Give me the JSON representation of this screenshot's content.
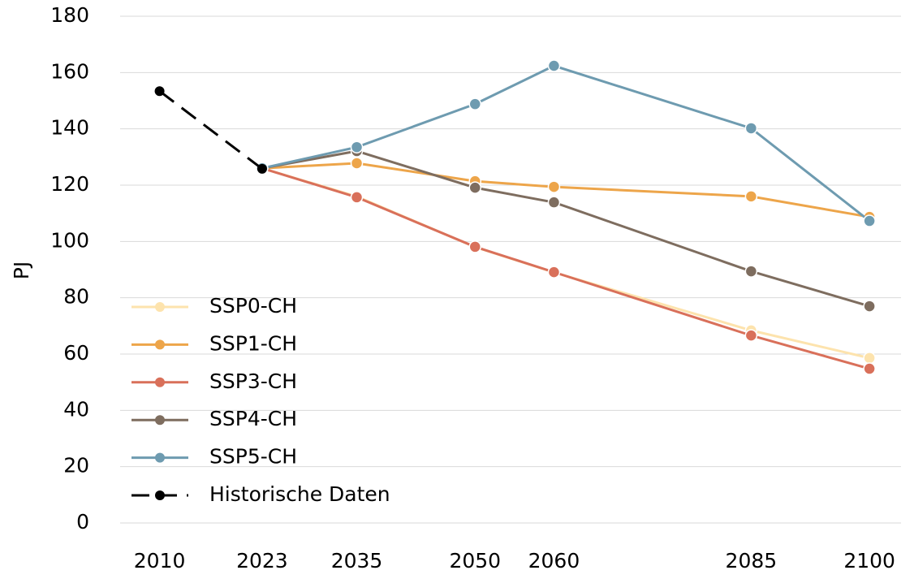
{
  "chart_data": {
    "type": "line",
    "y_label": "PJ",
    "x": [
      2010,
      2023,
      2035,
      2050,
      2060,
      2085,
      2100
    ],
    "xlim": [
      2005,
      2104
    ],
    "xticks": [
      2010,
      2023,
      2035,
      2050,
      2060,
      2085,
      2100
    ],
    "ylim": [
      0,
      180
    ],
    "yticks": [
      0,
      20,
      40,
      60,
      80,
      100,
      120,
      140,
      160,
      180
    ],
    "grid": true,
    "legend": "lower left",
    "series": [
      {
        "name": "SSP0-CH",
        "color": "#fde3ad",
        "values": [
          null,
          126,
          116,
          98,
          89,
          68.4,
          58.6
        ]
      },
      {
        "name": "SSP1-CH",
        "color": "#eda54a",
        "values": [
          null,
          126,
          127.8,
          121.4,
          119.4,
          116,
          108.7
        ]
      },
      {
        "name": "SSP3-CH",
        "color": "#d9705a",
        "values": [
          null,
          126,
          115.7,
          98.1,
          89.1,
          66.6,
          54.8
        ]
      },
      {
        "name": "SSP4-CH",
        "color": "#7e6d5f",
        "values": [
          null,
          126,
          132.1,
          119.1,
          113.9,
          89.4,
          77
        ]
      },
      {
        "name": "SSP5-CH",
        "color": "#6e9bb0",
        "values": [
          null,
          126,
          133.5,
          148.8,
          162.4,
          140.2,
          107.3
        ]
      },
      {
        "name": "Historische Daten",
        "color": "#000000",
        "dashed": true,
        "values": [
          153.4,
          125.8,
          null,
          null,
          null,
          null,
          null
        ]
      }
    ]
  }
}
